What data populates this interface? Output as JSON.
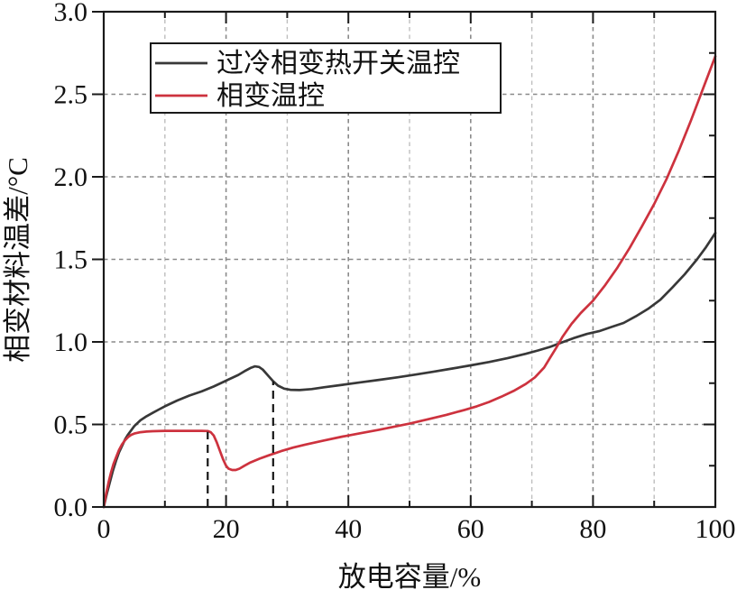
{
  "figure": {
    "background": "#ffffff",
    "axis_color": "#1a1a1a",
    "text_color": "#111111",
    "grid_major_color": "#8a8a8a",
    "grid_minor_color": "#bebebe"
  },
  "chart_data": {
    "type": "line",
    "title": "",
    "xlabel": "放电容量/%",
    "ylabel": "相变材料温差/°C",
    "xlim": [
      0,
      100
    ],
    "ylim": [
      0.0,
      3.0
    ],
    "x_major_ticks": [
      0,
      20,
      40,
      60,
      80,
      100
    ],
    "x_minor_ticks": [
      10,
      30,
      50,
      70,
      90
    ],
    "x_tick_labels": [
      "0",
      "20",
      "40",
      "60",
      "80",
      "100"
    ],
    "y_major_ticks": [
      0.0,
      0.5,
      1.0,
      1.5,
      2.0,
      2.5,
      3.0
    ],
    "y_minor_ticks": [
      0.25,
      0.75,
      1.25,
      1.75,
      2.25,
      2.75
    ],
    "y_tick_labels": [
      "0.0",
      "0.5",
      "1.0",
      "1.5",
      "2.0",
      "2.5",
      "3.0"
    ],
    "grid": {
      "style": "dashed",
      "vertical_major_at": [
        20,
        40,
        60,
        80
      ],
      "vertical_minor_at": [
        10,
        30,
        50,
        70,
        90
      ],
      "horizontal_at": [
        0.5,
        1.0,
        1.5,
        2.0,
        2.5
      ]
    },
    "legend_position": "top-left",
    "series": [
      {
        "name": "过冷相变热开关温控",
        "color": "#383838",
        "points": [
          [
            0,
            0
          ],
          [
            0.5,
            0.08
          ],
          [
            1,
            0.15
          ],
          [
            1.5,
            0.22
          ],
          [
            2,
            0.28
          ],
          [
            2.5,
            0.33
          ],
          [
            3,
            0.37
          ],
          [
            3.5,
            0.41
          ],
          [
            4,
            0.44
          ],
          [
            5,
            0.49
          ],
          [
            6,
            0.525
          ],
          [
            7,
            0.55
          ],
          [
            8,
            0.57
          ],
          [
            9,
            0.59
          ],
          [
            10,
            0.61
          ],
          [
            12,
            0.645
          ],
          [
            14,
            0.675
          ],
          [
            16,
            0.7
          ],
          [
            18,
            0.73
          ],
          [
            20,
            0.765
          ],
          [
            22,
            0.8
          ],
          [
            23,
            0.822
          ],
          [
            24,
            0.842
          ],
          [
            24.7,
            0.852
          ],
          [
            25.4,
            0.848
          ],
          [
            26,
            0.832
          ],
          [
            27,
            0.79
          ],
          [
            27.7,
            0.762
          ],
          [
            28.5,
            0.735
          ],
          [
            29.5,
            0.717
          ],
          [
            30.5,
            0.71
          ],
          [
            32,
            0.708
          ],
          [
            34,
            0.714
          ],
          [
            36,
            0.725
          ],
          [
            39,
            0.74
          ],
          [
            42,
            0.755
          ],
          [
            45,
            0.77
          ],
          [
            48,
            0.785
          ],
          [
            51,
            0.802
          ],
          [
            54,
            0.82
          ],
          [
            57,
            0.839
          ],
          [
            60,
            0.858
          ],
          [
            63,
            0.878
          ],
          [
            66,
            0.901
          ],
          [
            69,
            0.928
          ],
          [
            71,
            0.948
          ],
          [
            73,
            0.97
          ],
          [
            75,
            0.998
          ],
          [
            77,
            1.025
          ],
          [
            79,
            1.048
          ],
          [
            81,
            1.065
          ],
          [
            83,
            1.09
          ],
          [
            85,
            1.115
          ],
          [
            87,
            1.155
          ],
          [
            89,
            1.2
          ],
          [
            91,
            1.255
          ],
          [
            93,
            1.33
          ],
          [
            95,
            1.41
          ],
          [
            97,
            1.5
          ],
          [
            98.5,
            1.575
          ],
          [
            100,
            1.66
          ]
        ]
      },
      {
        "name": "相变温控",
        "color": "#cd323e",
        "points": [
          [
            0,
            0
          ],
          [
            0.4,
            0.08
          ],
          [
            0.8,
            0.15
          ],
          [
            1.2,
            0.21
          ],
          [
            1.6,
            0.26
          ],
          [
            2,
            0.3
          ],
          [
            2.5,
            0.345
          ],
          [
            3,
            0.38
          ],
          [
            3.5,
            0.405
          ],
          [
            4,
            0.424
          ],
          [
            4.5,
            0.437
          ],
          [
            5,
            0.445
          ],
          [
            6,
            0.453
          ],
          [
            7,
            0.457
          ],
          [
            8,
            0.459
          ],
          [
            10,
            0.461
          ],
          [
            13,
            0.461
          ],
          [
            16,
            0.461
          ],
          [
            17,
            0.46
          ],
          [
            17.5,
            0.453
          ],
          [
            18,
            0.432
          ],
          [
            18.5,
            0.39
          ],
          [
            19,
            0.34
          ],
          [
            19.5,
            0.29
          ],
          [
            20,
            0.25
          ],
          [
            20.4,
            0.232
          ],
          [
            21,
            0.224
          ],
          [
            21.6,
            0.224
          ],
          [
            22.2,
            0.232
          ],
          [
            23,
            0.25
          ],
          [
            24,
            0.27
          ],
          [
            25.5,
            0.293
          ],
          [
            27,
            0.313
          ],
          [
            29,
            0.338
          ],
          [
            31,
            0.36
          ],
          [
            33,
            0.378
          ],
          [
            36,
            0.403
          ],
          [
            39,
            0.426
          ],
          [
            42,
            0.447
          ],
          [
            45,
            0.468
          ],
          [
            48,
            0.49
          ],
          [
            50,
            0.505
          ],
          [
            53,
            0.531
          ],
          [
            56,
            0.558
          ],
          [
            59,
            0.588
          ],
          [
            61,
            0.61
          ],
          [
            63,
            0.636
          ],
          [
            65,
            0.668
          ],
          [
            67,
            0.703
          ],
          [
            69,
            0.745
          ],
          [
            70.5,
            0.785
          ],
          [
            72,
            0.845
          ],
          [
            73,
            0.905
          ],
          [
            74,
            0.965
          ],
          [
            75,
            1.03
          ],
          [
            76.5,
            1.11
          ],
          [
            78,
            1.175
          ],
          [
            80,
            1.25
          ],
          [
            82,
            1.345
          ],
          [
            84,
            1.45
          ],
          [
            86,
            1.57
          ],
          [
            88,
            1.7
          ],
          [
            90,
            1.835
          ],
          [
            92,
            1.985
          ],
          [
            94,
            2.155
          ],
          [
            96,
            2.34
          ],
          [
            98,
            2.535
          ],
          [
            100,
            2.73
          ]
        ]
      }
    ],
    "annotations": [
      {
        "type": "dashed-vline",
        "x": 17.0,
        "y0": 0.0,
        "y1": 0.455
      },
      {
        "type": "dashed-vline",
        "x": 27.7,
        "y0": 0.0,
        "y1": 0.76
      }
    ]
  }
}
